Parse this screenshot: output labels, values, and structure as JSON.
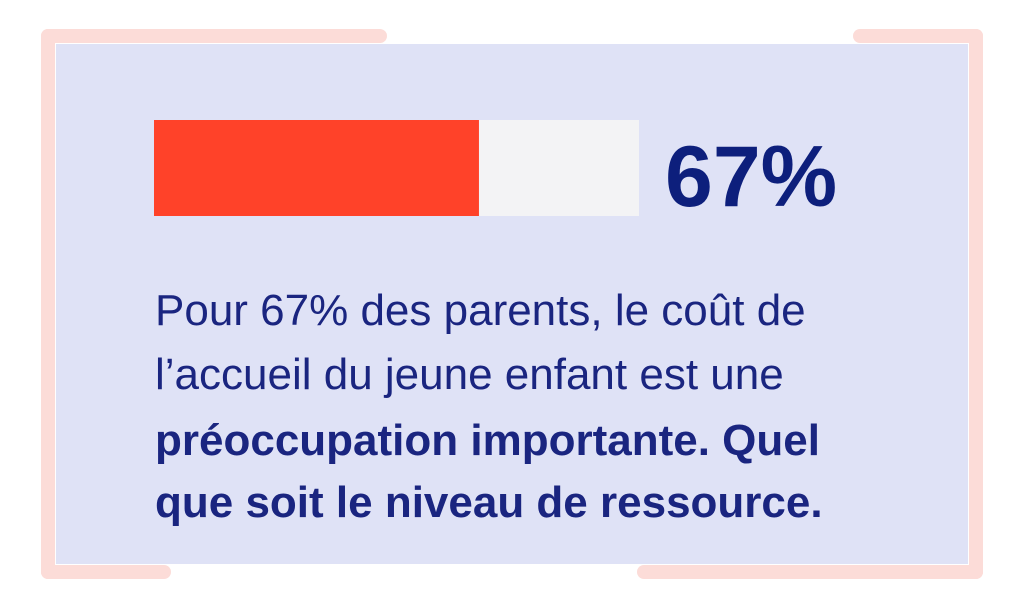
{
  "chart_data": {
    "type": "progress",
    "value": 67,
    "value_label": "67%",
    "xlim": [
      0,
      100
    ],
    "color": "#ff4229",
    "track_color": "#f3f3f5"
  },
  "body": {
    "regular": [
      "Pour 67% des parents, le coût de",
      "l’accueil du jeune enfant est une"
    ],
    "bold": [
      "préoccupation importante. Quel",
      "que soit le niveau de ressource."
    ]
  }
}
